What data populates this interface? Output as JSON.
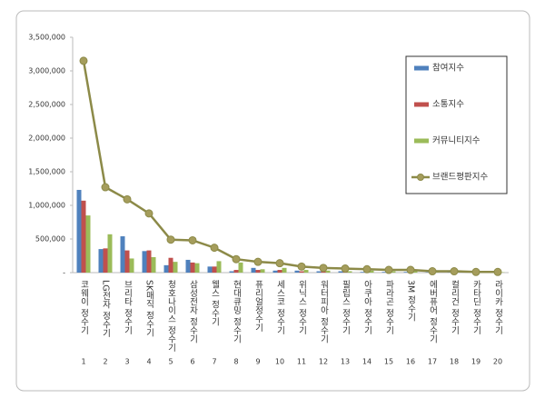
{
  "chart_data": {
    "type": "bar-line",
    "categories": [
      "코웨이 정수기",
      "LG전자 정수기",
      "브리타 정수기",
      "SK매직 정수기",
      "청호나이스 정수기",
      "삼성전자 정수기",
      "웰스 정수기",
      "현대큐밍 정수기",
      "퓨리얼정수기",
      "세스코 정수기",
      "위닉스 정수기",
      "워터피아 정수기",
      "필립스 정수기",
      "아쿠아 정수기",
      "파라곤 정수기",
      "3M 정수기",
      "에버퓨어 정수기",
      "컬리건 정수기",
      "카타딘 정수기",
      "라이카 정수기"
    ],
    "ranks": [
      1,
      2,
      3,
      4,
      5,
      6,
      7,
      8,
      9,
      10,
      11,
      12,
      13,
      14,
      15,
      16,
      17,
      18,
      19,
      20
    ],
    "series": [
      {
        "name": "참여지수",
        "type": "bar",
        "color": "#4f81bd",
        "values": [
          1230000,
          350000,
          540000,
          320000,
          110000,
          190000,
          90000,
          20000,
          70000,
          30000,
          30000,
          20000,
          20000,
          10000,
          10000,
          10000,
          5000,
          5000,
          3000,
          3000
        ]
      },
      {
        "name": "소통지수",
        "type": "bar",
        "color": "#c0504d",
        "values": [
          1070000,
          360000,
          330000,
          330000,
          220000,
          150000,
          90000,
          40000,
          40000,
          40000,
          20000,
          20000,
          15000,
          10000,
          10000,
          10000,
          5000,
          5000,
          3000,
          3000
        ]
      },
      {
        "name": "커뮤니티지수",
        "type": "bar",
        "color": "#9bbb59",
        "values": [
          850000,
          570000,
          210000,
          230000,
          160000,
          140000,
          170000,
          150000,
          50000,
          70000,
          40000,
          30000,
          20000,
          30000,
          20000,
          20000,
          10000,
          10000,
          5000,
          5000
        ]
      },
      {
        "name": "브랜드평판지수",
        "type": "line",
        "color": "#8c8a48",
        "values": [
          3150000,
          1270000,
          1090000,
          880000,
          490000,
          480000,
          370000,
          200000,
          160000,
          140000,
          90000,
          70000,
          60000,
          50000,
          40000,
          40000,
          20000,
          20000,
          10000,
          10000
        ]
      }
    ],
    "ylim": [
      0,
      3500000
    ],
    "yticks": [
      {
        "value": 0,
        "label": "-"
      },
      {
        "value": 500000,
        "label": "500,000"
      },
      {
        "value": 1000000,
        "label": "1,000,000"
      },
      {
        "value": 1500000,
        "label": "1,500,000"
      },
      {
        "value": 2000000,
        "label": "2,000,000"
      },
      {
        "value": 2500000,
        "label": "2,500,000"
      },
      {
        "value": 3000000,
        "label": "3,000,000"
      },
      {
        "value": 3500000,
        "label": "3,500,000"
      }
    ],
    "grid": false,
    "legend_position": "upper right"
  }
}
